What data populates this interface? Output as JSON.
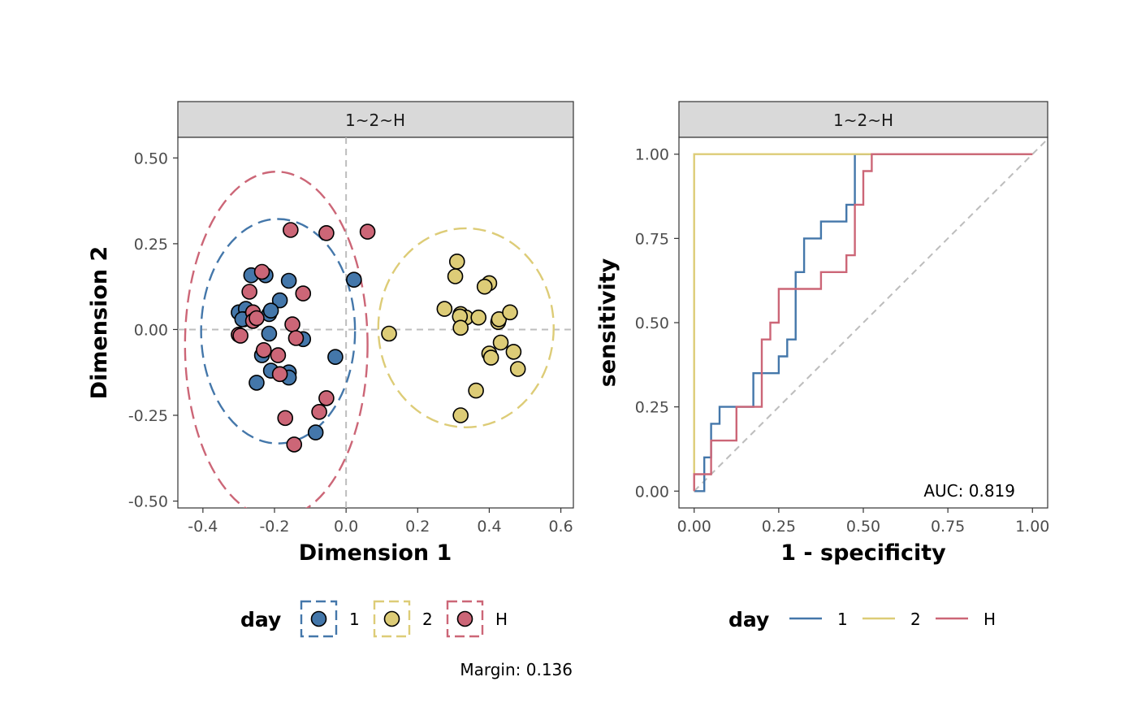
{
  "chart_data": [
    {
      "type": "scatter",
      "facet_label": "1~2~H",
      "xlabel": "Dimension 1",
      "ylabel": "Dimension 2",
      "xlim": [
        -0.47,
        0.635
      ],
      "ylim": [
        -0.52,
        0.56
      ],
      "x_ticks": [
        -0.4,
        -0.2,
        0.0,
        0.2,
        0.4,
        0.6
      ],
      "x_tick_labels": [
        "-0.4",
        "-0.2",
        "0.0",
        "0.2",
        "0.4",
        "0.6"
      ],
      "y_ticks": [
        0.5,
        0.25,
        0.0,
        -0.25,
        -0.5
      ],
      "y_tick_labels": [
        "0.50",
        "0.25",
        "0.00",
        "-0.25",
        "-0.50"
      ],
      "reference_lines": {
        "x": 0,
        "y": 0,
        "style": "dashed",
        "color": "#bdbdbd"
      },
      "grid": false,
      "legend": {
        "title": "day",
        "position": "bottom"
      },
      "note": "Margin: 0.136",
      "series": [
        {
          "name": "1",
          "color": "#4477aa",
          "ellipse": {
            "cx": -0.19,
            "cy": -0.005,
            "rx": 0.215,
            "ry": 0.327
          },
          "points": [
            [
              -0.3,
              0.05
            ],
            [
              -0.28,
              0.06
            ],
            [
              -0.285,
              0.03
            ],
            [
              -0.29,
              0.03
            ],
            [
              -0.265,
              0.158
            ],
            [
              -0.225,
              0.158
            ],
            [
              -0.16,
              0.142
            ],
            [
              -0.185,
              0.085
            ],
            [
              -0.215,
              0.045
            ],
            [
              -0.21,
              0.055
            ],
            [
              -0.215,
              -0.012
            ],
            [
              -0.12,
              -0.028
            ],
            [
              -0.03,
              -0.08
            ],
            [
              -0.235,
              -0.075
            ],
            [
              -0.21,
              -0.12
            ],
            [
              -0.16,
              -0.125
            ],
            [
              -0.16,
              -0.14
            ],
            [
              -0.25,
              -0.155
            ],
            [
              -0.085,
              -0.3
            ],
            [
              0.022,
              0.145
            ]
          ]
        },
        {
          "name": "2",
          "color": "#ddcc77",
          "ellipse": {
            "cx": 0.335,
            "cy": 0.005,
            "rx": 0.245,
            "ry": 0.29
          },
          "points": [
            [
              0.12,
              -0.012
            ],
            [
              0.275,
              0.06
            ],
            [
              0.31,
              0.198
            ],
            [
              0.305,
              0.155
            ],
            [
              0.32,
              0.045
            ],
            [
              0.335,
              0.035
            ],
            [
              0.318,
              0.038
            ],
            [
              0.32,
              0.005
            ],
            [
              0.37,
              0.035
            ],
            [
              0.4,
              0.135
            ],
            [
              0.387,
              0.125
            ],
            [
              0.425,
              0.022
            ],
            [
              0.427,
              0.03
            ],
            [
              0.458,
              0.05
            ],
            [
              0.432,
              -0.038
            ],
            [
              0.4,
              -0.07
            ],
            [
              0.405,
              -0.082
            ],
            [
              0.468,
              -0.065
            ],
            [
              0.48,
              -0.115
            ],
            [
              0.363,
              -0.178
            ],
            [
              0.32,
              -0.25
            ]
          ]
        },
        {
          "name": "H",
          "color": "#cc6677",
          "ellipse": {
            "cx": -0.195,
            "cy": -0.045,
            "rx": 0.255,
            "ry": 0.505
          },
          "points": [
            [
              -0.155,
              0.29
            ],
            [
              -0.055,
              0.281
            ],
            [
              0.06,
              0.285
            ],
            [
              -0.235,
              0.168
            ],
            [
              -0.27,
              0.11
            ],
            [
              -0.12,
              0.105
            ],
            [
              -0.26,
              0.05
            ],
            [
              -0.26,
              0.025
            ],
            [
              -0.25,
              0.033
            ],
            [
              -0.3,
              -0.015
            ],
            [
              -0.295,
              -0.018
            ],
            [
              -0.15,
              0.015
            ],
            [
              -0.14,
              -0.025
            ],
            [
              -0.23,
              -0.06
            ],
            [
              -0.19,
              -0.075
            ],
            [
              -0.185,
              -0.13
            ],
            [
              -0.055,
              -0.2
            ],
            [
              -0.075,
              -0.24
            ],
            [
              -0.17,
              -0.258
            ],
            [
              -0.145,
              -0.335
            ]
          ]
        }
      ]
    },
    {
      "type": "line",
      "subtype": "roc-step",
      "facet_label": "1~2~H",
      "xlabel": "1 - specificity",
      "ylabel": "sensitivity",
      "xlim": [
        -0.045,
        1.045
      ],
      "ylim": [
        -0.05,
        1.05
      ],
      "x_ticks": [
        0,
        0.25,
        0.5,
        0.75,
        1
      ],
      "x_tick_labels": [
        "0.00",
        "0.25",
        "0.50",
        "0.75",
        "1.00"
      ],
      "y_ticks": [
        1,
        0.75,
        0.5,
        0.25,
        0
      ],
      "y_tick_labels": [
        "1.00",
        "0.75",
        "0.50",
        "0.25",
        "0.00"
      ],
      "diagonal": {
        "from": [
          0,
          0
        ],
        "to": [
          1.045,
          1.045
        ],
        "style": "dashed",
        "color": "#bdbdbd"
      },
      "grid": false,
      "auc_text": "AUC: 0.819",
      "legend": {
        "title": "day",
        "position": "bottom"
      },
      "series": [
        {
          "name": "1",
          "color": "#4477aa",
          "points": [
            [
              0,
              0
            ],
            [
              0.03,
              0
            ],
            [
              0.03,
              0.1
            ],
            [
              0.05,
              0.1
            ],
            [
              0.05,
              0.2
            ],
            [
              0.075,
              0.2
            ],
            [
              0.075,
              0.25
            ],
            [
              0.175,
              0.25
            ],
            [
              0.175,
              0.35
            ],
            [
              0.25,
              0.35
            ],
            [
              0.25,
              0.4
            ],
            [
              0.275,
              0.4
            ],
            [
              0.275,
              0.45
            ],
            [
              0.3,
              0.45
            ],
            [
              0.3,
              0.65
            ],
            [
              0.325,
              0.65
            ],
            [
              0.325,
              0.75
            ],
            [
              0.375,
              0.75
            ],
            [
              0.375,
              0.8
            ],
            [
              0.45,
              0.8
            ],
            [
              0.45,
              0.85
            ],
            [
              0.475,
              0.85
            ],
            [
              0.475,
              1.0
            ],
            [
              1.0,
              1.0
            ]
          ]
        },
        {
          "name": "2",
          "color": "#ddcc77",
          "points": [
            [
              0,
              0
            ],
            [
              0,
              1.0
            ],
            [
              1.0,
              1.0
            ]
          ]
        },
        {
          "name": "H",
          "color": "#cc6677",
          "points": [
            [
              0,
              0
            ],
            [
              0,
              0.05
            ],
            [
              0.05,
              0.05
            ],
            [
              0.05,
              0.15
            ],
            [
              0.125,
              0.15
            ],
            [
              0.125,
              0.25
            ],
            [
              0.2,
              0.25
            ],
            [
              0.2,
              0.45
            ],
            [
              0.225,
              0.45
            ],
            [
              0.225,
              0.5
            ],
            [
              0.25,
              0.5
            ],
            [
              0.25,
              0.6
            ],
            [
              0.375,
              0.6
            ],
            [
              0.375,
              0.65
            ],
            [
              0.45,
              0.65
            ],
            [
              0.45,
              0.7
            ],
            [
              0.475,
              0.7
            ],
            [
              0.475,
              0.85
            ],
            [
              0.5,
              0.85
            ],
            [
              0.5,
              0.95
            ],
            [
              0.525,
              0.95
            ],
            [
              0.525,
              1.0
            ],
            [
              1.0,
              1.0
            ]
          ]
        }
      ]
    }
  ]
}
